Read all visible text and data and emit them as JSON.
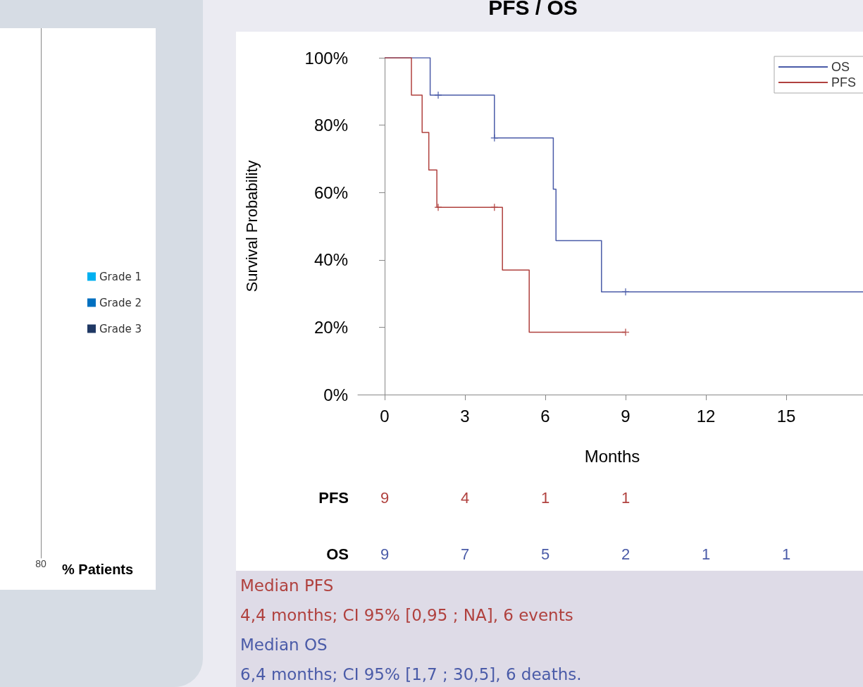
{
  "chart_data": [
    {
      "type": "other",
      "xlabel": "% Patients",
      "legend": "right",
      "annotations": [
        "80"
      ],
      "series": [
        {
          "name": "Grade 1",
          "color": "#00b0f0"
        },
        {
          "name": "Grade 2",
          "color": "#0070c0"
        },
        {
          "name": "Grade 3",
          "color": "#1f3864"
        }
      ]
    },
    {
      "type": "step",
      "title": "PFS / OS",
      "xlabel": "Months",
      "ylabel": "Survival Probability",
      "xlim": [
        -1,
        18
      ],
      "xticks": [
        0,
        3,
        6,
        9,
        12,
        15
      ],
      "ylim": [
        0,
        100
      ],
      "yticks": [
        {
          "value": 0,
          "label": "0%"
        },
        {
          "value": 20,
          "label": "20%"
        },
        {
          "value": 40,
          "label": "40%"
        },
        {
          "value": 60,
          "label": "60%"
        },
        {
          "value": 80,
          "label": "80%"
        },
        {
          "value": 100,
          "label": "100%"
        }
      ],
      "legend": "top right",
      "line_style": "solid",
      "grid": false,
      "series": [
        {
          "name": "OS",
          "color": "#4a5ba8",
          "x": [
            0,
            1.7,
            4.1,
            6.3,
            6.4,
            8.1,
            18
          ],
          "values": [
            100,
            88.9,
            76.2,
            61,
            45.7,
            30.5,
            30.5
          ]
        },
        {
          "name": "PFS",
          "color": "#b0413e",
          "x": [
            0,
            1,
            1.4,
            1.65,
            1.95,
            4.4,
            5.4,
            9
          ],
          "values": [
            100,
            88.9,
            77.8,
            66.7,
            55.6,
            37,
            18.5,
            18.5
          ]
        },
        {
          "type": "scatter",
          "marker": "cross",
          "color": "#4a5ba8",
          "x": [
            2,
            4.1,
            9
          ],
          "values": [
            88.9,
            76.2,
            30.5
          ]
        },
        {
          "type": "scatter",
          "marker": "cross",
          "color": "#b0413e",
          "x": [
            2,
            4.1,
            9
          ],
          "values": [
            55.6,
            55.6,
            18.5
          ]
        }
      ]
    },
    {
      "type": "other",
      "title": "PFS",
      "annotations": [
        "9",
        "4",
        "1",
        "1"
      ]
    },
    {
      "type": "other",
      "title": "OS",
      "annotations": [
        "9",
        "7",
        "5",
        "2",
        "1",
        "1"
      ]
    },
    {
      "type": "other",
      "annotations": [
        "Median PFS",
        "4,4 months; CI 95% [0,95 ; NA], 6 events",
        "Median OS",
        "6,4 months; CI 95% [1,7 ; 30,5], 6 deaths."
      ]
    }
  ]
}
